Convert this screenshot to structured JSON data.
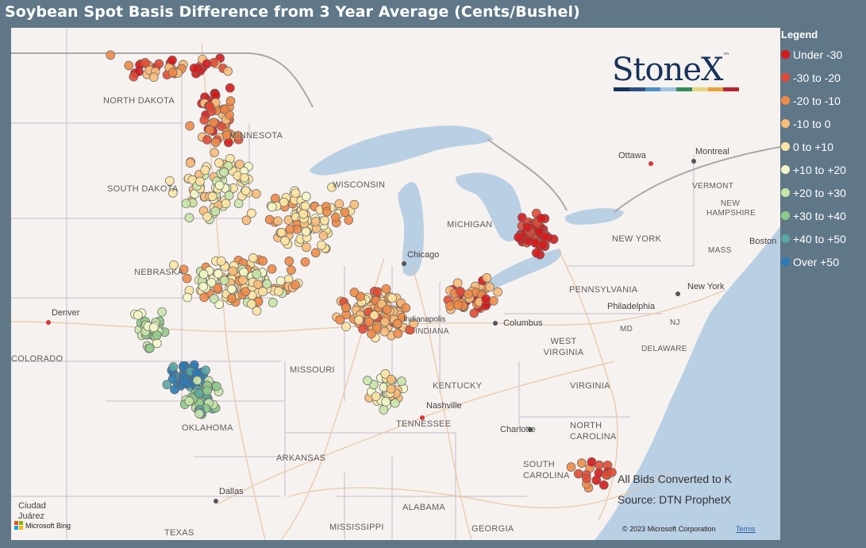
{
  "title": "Soybean Spot Basis Difference from 3 Year Average (Cents/Bushel)",
  "legend": {
    "title": "Legend",
    "items": [
      {
        "label": "Under -30",
        "color": "#d7191c"
      },
      {
        "label": "-30 to -20",
        "color": "#e34a33"
      },
      {
        "label": "-20 to -10",
        "color": "#f08a47"
      },
      {
        "label": "-10 to 0",
        "color": "#f9bb78"
      },
      {
        "label": "0 to +10",
        "color": "#fde4a2"
      },
      {
        "label": "+10 to +20",
        "color": "#f4f8c8"
      },
      {
        "label": "+20 to +30",
        "color": "#c9e6a8"
      },
      {
        "label": "+30 to +40",
        "color": "#8fc98a"
      },
      {
        "label": "+40 to +50",
        "color": "#5aa6a2"
      },
      {
        "label": "Over +50",
        "color": "#2c7bb6"
      }
    ]
  },
  "logo": {
    "text": "StoneX",
    "mark": "™",
    "colors": [
      "#16325c",
      "#2a4e8a",
      "#4a8fc6",
      "#9cc3e3",
      "#2e8a5a",
      "#e6d77a",
      "#e8a13a",
      "#b8232f"
    ]
  },
  "notes": [
    "All Bids Converted to K",
    "Source: DTN ProphetX"
  ],
  "attribution": {
    "bing": "Microsoft Bing",
    "copyright": "© 2023 Microsoft Corporation",
    "terms": "Terms"
  },
  "labels": {
    "states": [
      "NORTH DAKOTA",
      "MINNESOTA",
      "SOUTH DAKOTA",
      "WISCONSIN",
      "MICHIGAN",
      "NEBRASKA",
      "COLORADO",
      "MISSOURI",
      "KENTUCKY",
      "TENNESSEE",
      "ARKANSAS",
      "OKLAHOMA",
      "TEXAS",
      "MISSISSIPPI",
      "ALABAMA",
      "GEORGIA",
      "SOUTH CAROLINA",
      "NORTH CAROLINA",
      "VIRGINIA",
      "WEST VIRGINIA",
      "PENNSYLVANIA",
      "NEW YORK",
      "VERMONT",
      "NEW HAMPSHIRE",
      "MASS",
      "DELAWARE",
      "MD",
      "NJ",
      "INDIANA"
    ],
    "cities": [
      "Ottawa",
      "Montreal",
      "Boston",
      "New York",
      "Philadelphia",
      "Columbus",
      "Chicago",
      "Denver",
      "Nashville",
      "Charlotte",
      "Dallas",
      "Ciudad Juárez",
      "Indianapolis"
    ]
  }
}
